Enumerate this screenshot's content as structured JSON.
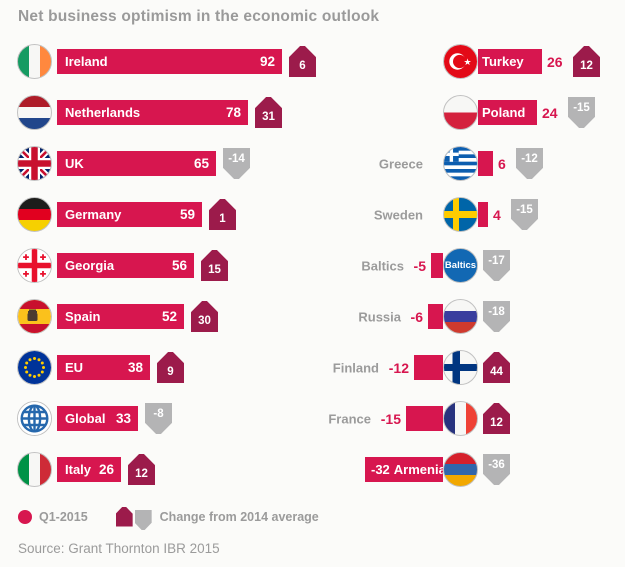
{
  "title": "Net business optimism in the economic outlook",
  "legend": {
    "series": "Q1-2015",
    "change": "Change from 2014 average"
  },
  "source": "Source: Grant Thornton IBR 2015",
  "colors": {
    "bar": "#d7164f",
    "up_arrow": "#9c1b4b",
    "down_arrow": "#b4b4b5",
    "gray_label": "#9b9b9b",
    "background": "#fbfbf9"
  },
  "chart_data": {
    "type": "bar",
    "title": "Net business optimism in the economic outlook",
    "series_label": "Q1-2015",
    "change_label": "Change from 2014 average",
    "source": "Source: Grant Thornton IBR 2015",
    "value_range": [
      -32,
      92
    ],
    "left": [
      {
        "label": "Ireland",
        "flag": "ireland-flag",
        "value": 92,
        "change": 6
      },
      {
        "label": "Netherlands",
        "flag": "netherlands-flag",
        "value": 78,
        "change": 31
      },
      {
        "label": "UK",
        "flag": "uk-flag",
        "value": 65,
        "change": -14
      },
      {
        "label": "Germany",
        "flag": "germany-flag",
        "value": 59,
        "change": 1
      },
      {
        "label": "Georgia",
        "flag": "georgia-flag",
        "value": 56,
        "change": 15
      },
      {
        "label": "Spain",
        "flag": "spain-flag",
        "value": 52,
        "change": 30
      },
      {
        "label": "EU",
        "flag": "eu-flag",
        "value": 38,
        "change": 9
      },
      {
        "label": "Global",
        "flag": "globe-icon",
        "value": 33,
        "change": -8
      },
      {
        "label": "Italy",
        "flag": "italy-flag",
        "value": 26,
        "change": 12
      }
    ],
    "right": [
      {
        "label": "Turkey",
        "flag": "turkey-flag",
        "value": 26,
        "change": 12
      },
      {
        "label": "Poland",
        "flag": "poland-flag",
        "value": 24,
        "change": -15
      },
      {
        "label": "Greece",
        "flag": "greece-flag",
        "value": 6,
        "change": -12
      },
      {
        "label": "Sweden",
        "flag": "sweden-flag",
        "value": 4,
        "change": -15
      },
      {
        "label": "Baltics",
        "flag": "baltics-flag",
        "value": -5,
        "change": -17
      },
      {
        "label": "Russia",
        "flag": "russia-flag",
        "value": -6,
        "change": -18
      },
      {
        "label": "Finland",
        "flag": "finland-flag",
        "value": -12,
        "change": 44
      },
      {
        "label": "France",
        "flag": "france-flag",
        "value": -15,
        "change": 12
      },
      {
        "label": "Armenia",
        "flag": "armenia-flag",
        "value": -32,
        "change": -36
      }
    ]
  }
}
